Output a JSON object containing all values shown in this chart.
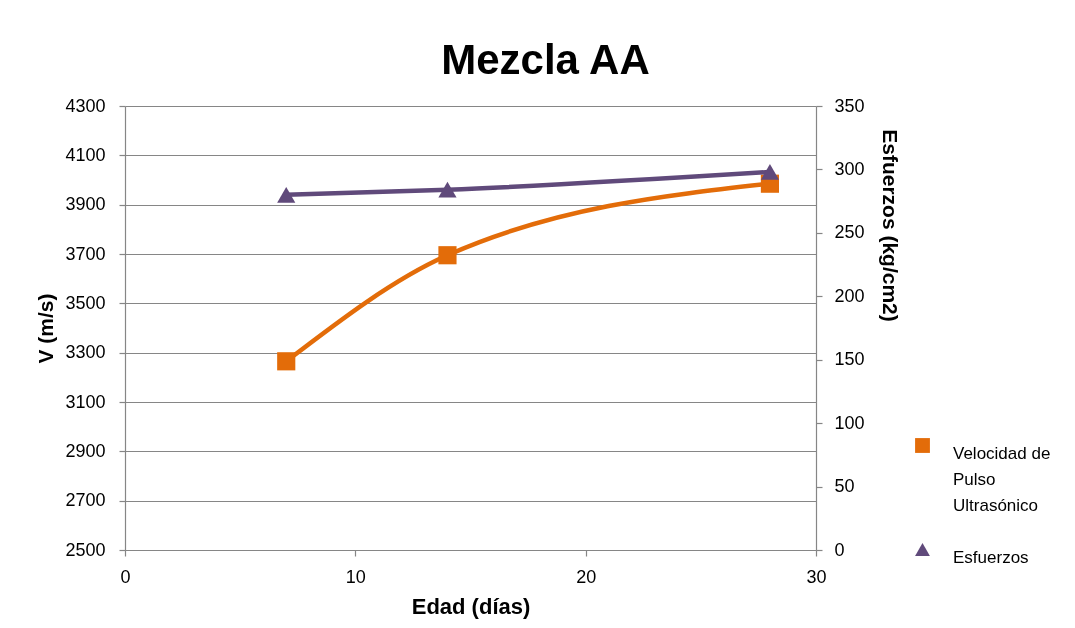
{
  "chart_data": {
    "type": "line",
    "title": "Mezcla AA",
    "xlabel": "Edad (días)",
    "ylabel": "V (m/s)",
    "y2label": "Esfuerzos (kg/cm2)",
    "x": [
      7,
      14,
      28
    ],
    "series": [
      {
        "name": "Velocidad de Pulso Ultrasónico",
        "color": "#e36c09",
        "values": [
          3265,
          3695,
          3985
        ],
        "marker": "square"
      },
      {
        "name": "Esfuerzos",
        "color": "#604a7b",
        "values": [
          280,
          284,
          298
        ],
        "axis": "y2",
        "marker": "triangle"
      }
    ],
    "xlim": [
      0,
      30
    ],
    "xticks": [
      0,
      10,
      20,
      30
    ],
    "ylim": [
      2500,
      4300
    ],
    "yticks": [
      2500,
      2700,
      2900,
      3100,
      3300,
      3500,
      3700,
      3900,
      4100,
      4300
    ],
    "y2lim": [
      0,
      350
    ],
    "y2ticks": [
      0,
      50,
      100,
      150,
      200,
      250,
      300,
      350
    ],
    "grid": "y",
    "legend": "right"
  }
}
